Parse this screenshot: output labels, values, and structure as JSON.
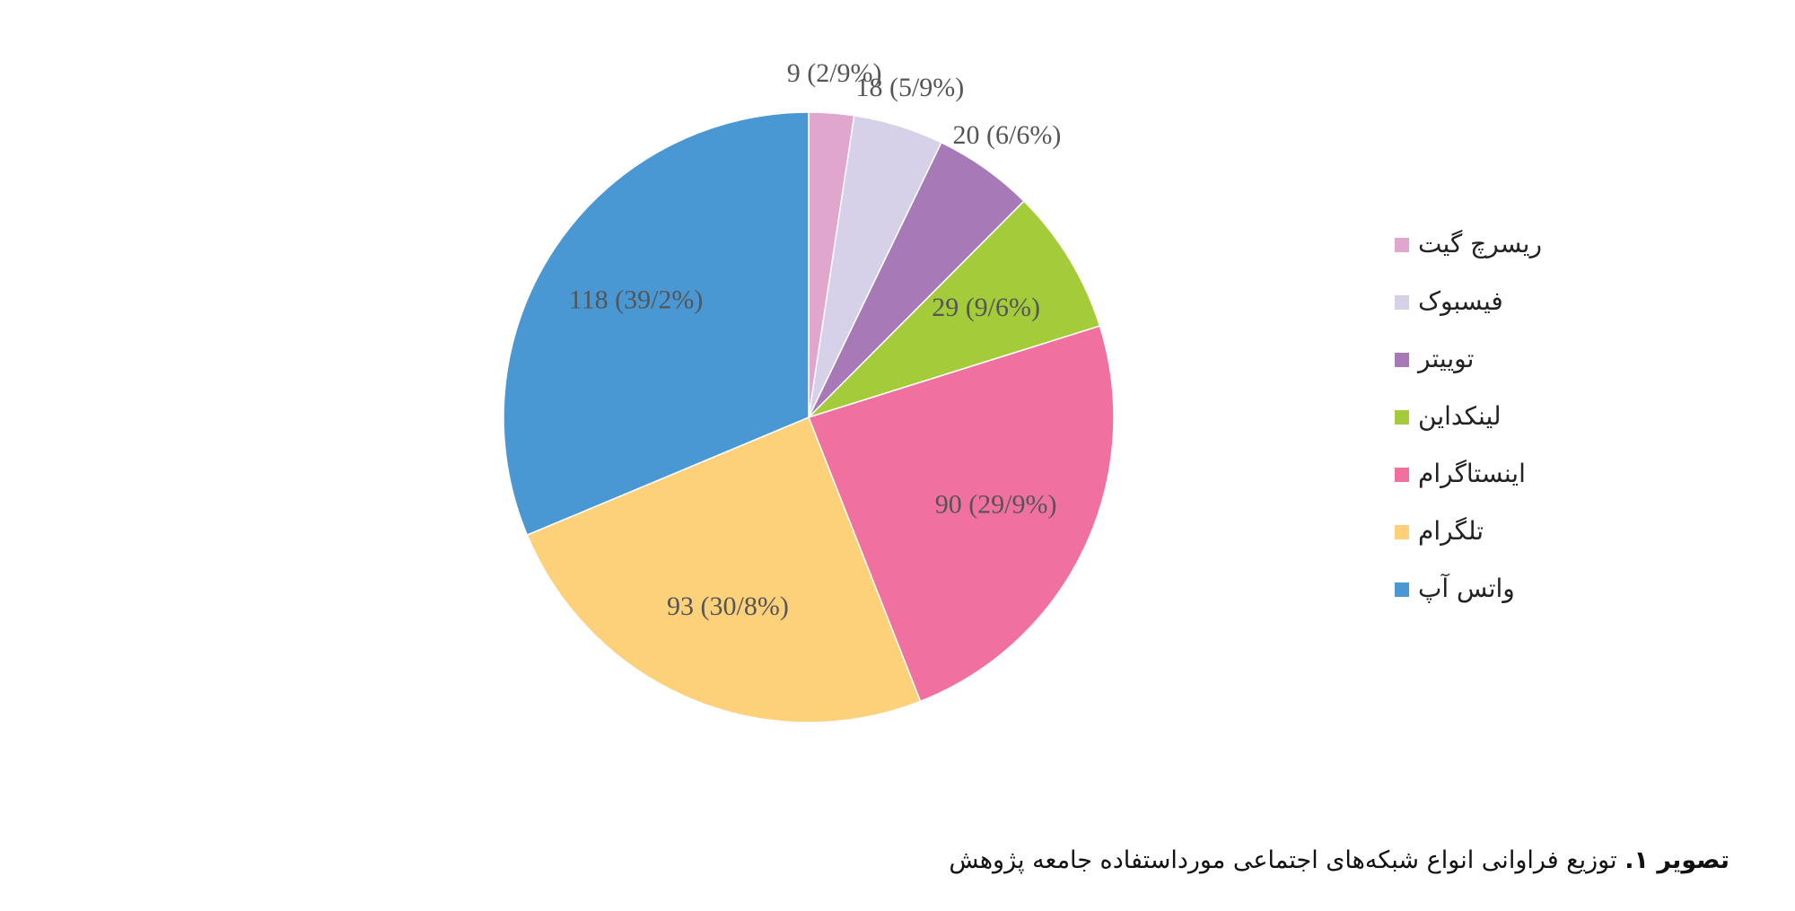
{
  "chart_data": {
    "type": "pie",
    "categories": [
      "ریسرچ گیت",
      "فیسبوک",
      "توییتر",
      "لینکداین",
      "اینستاگرام",
      "تلگرام",
      "واتس آپ"
    ],
    "values": [
      9,
      18,
      20,
      29,
      90,
      93,
      118
    ],
    "value_labels": [
      "9 (2/9%)",
      "18 (5/9%)",
      "20 (6/6%)",
      "29 (9/6%)",
      "90 (29/9%)",
      "93 (30/8%)",
      "118 (39/2%)"
    ],
    "colors": [
      "#e0a6cd",
      "#d6d0e8",
      "#a779b6",
      "#a3cb3a",
      "#f070a0",
      "#fdd07a",
      "#4a98d3"
    ],
    "legend": "right"
  },
  "caption": {
    "label": "تصویر ۱.",
    "text": "توزیع فراوانی انواع شبکه‌های اجتماعی مورداستفاده جامعه پژوهش"
  }
}
